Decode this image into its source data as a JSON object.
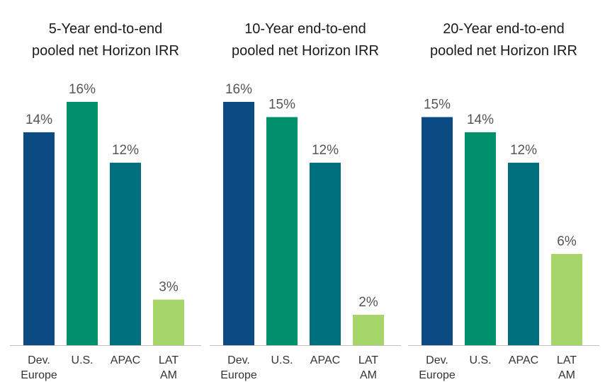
{
  "chart_data": [
    {
      "type": "bar",
      "title_lines": [
        "5-Year end-to-end",
        "pooled net Horizon IRR"
      ],
      "categories": [
        [
          "Dev.",
          "Europe"
        ],
        [
          "U.S."
        ],
        [
          "APAC"
        ],
        [
          "LAT",
          "AM"
        ]
      ],
      "values": [
        14,
        16,
        12,
        3
      ],
      "value_labels": [
        "14%",
        "16%",
        "12%",
        "3%"
      ],
      "colors": [
        "#0c4a84",
        "#00906b",
        "#00707f",
        "#a6d56a"
      ],
      "ylim": [
        0,
        16
      ]
    },
    {
      "type": "bar",
      "title_lines": [
        "10-Year end-to-end",
        "pooled net Horizon IRR"
      ],
      "categories": [
        [
          "Dev.",
          "Europe"
        ],
        [
          "U.S."
        ],
        [
          "APAC"
        ],
        [
          "LAT",
          "AM"
        ]
      ],
      "values": [
        16,
        15,
        12,
        2
      ],
      "value_labels": [
        "16%",
        "15%",
        "12%",
        "2%"
      ],
      "colors": [
        "#0c4a84",
        "#00906b",
        "#00707f",
        "#a6d56a"
      ],
      "ylim": [
        0,
        16
      ]
    },
    {
      "type": "bar",
      "title_lines": [
        "20-Year end-to-end",
        "pooled net Horizon IRR"
      ],
      "categories": [
        [
          "Dev.",
          "Europe"
        ],
        [
          "U.S."
        ],
        [
          "APAC"
        ],
        [
          "LAT",
          "AM"
        ]
      ],
      "values": [
        15,
        14,
        12,
        6
      ],
      "value_labels": [
        "15%",
        "14%",
        "12%",
        "6%"
      ],
      "colors": [
        "#0c4a84",
        "#00906b",
        "#00707f",
        "#a6d56a"
      ],
      "ylim": [
        0,
        16
      ]
    }
  ]
}
